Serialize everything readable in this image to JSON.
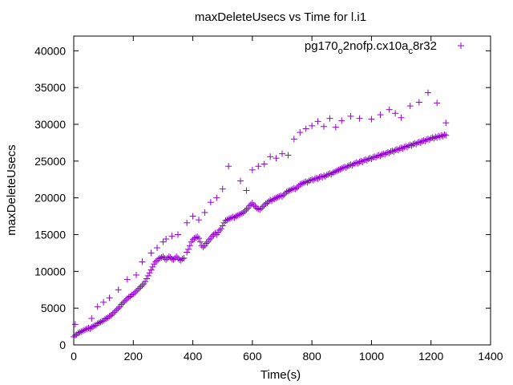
{
  "chart_data": {
    "type": "scatter",
    "title": "maxDeleteUsecs vs Time for l.i1",
    "xlabel": "Time(s)",
    "ylabel": "maxDeleteUsecs",
    "xlim": [
      0,
      1400
    ],
    "ylim": [
      0,
      42000
    ],
    "x_ticks": [
      0,
      200,
      400,
      600,
      800,
      1000,
      1200,
      1400
    ],
    "y_ticks": [
      0,
      5000,
      10000,
      15000,
      20000,
      25000,
      30000,
      35000,
      40000
    ],
    "x_tick_labels": [
      "0",
      "200",
      "400",
      "600",
      "800",
      "1000",
      "1200",
      "1400"
    ],
    "y_tick_labels": [
      "0",
      "5000",
      "10000",
      "15000",
      "20000",
      "25000",
      "30000",
      "35000",
      "40000"
    ],
    "grid": false,
    "legend_position": "top-right",
    "marker": "plus",
    "series": [
      {
        "name_parts": [
          "pg170",
          "o",
          "2nofp.cx10a",
          "c",
          "8r32"
        ],
        "color": "#9400d3",
        "points": [
          [
            0,
            1100
          ],
          [
            5,
            1300
          ],
          [
            10,
            1400
          ],
          [
            15,
            1600
          ],
          [
            20,
            1700
          ],
          [
            25,
            1800
          ],
          [
            30,
            1900
          ],
          [
            35,
            2000
          ],
          [
            40,
            2100
          ],
          [
            45,
            2200
          ],
          [
            50,
            2300
          ],
          [
            55,
            2200
          ],
          [
            60,
            2400
          ],
          [
            65,
            2500
          ],
          [
            70,
            2600
          ],
          [
            75,
            2700
          ],
          [
            80,
            2900
          ],
          [
            85,
            3000
          ],
          [
            90,
            3100
          ],
          [
            95,
            3200
          ],
          [
            100,
            3300
          ],
          [
            105,
            3500
          ],
          [
            110,
            3600
          ],
          [
            115,
            3700
          ],
          [
            120,
            3900
          ],
          [
            125,
            4000
          ],
          [
            130,
            4200
          ],
          [
            135,
            4400
          ],
          [
            140,
            4600
          ],
          [
            145,
            4800
          ],
          [
            150,
            5000
          ],
          [
            155,
            5200
          ],
          [
            160,
            5500
          ],
          [
            165,
            5700
          ],
          [
            170,
            5900
          ],
          [
            175,
            6100
          ],
          [
            180,
            6300
          ],
          [
            185,
            6500
          ],
          [
            190,
            6600
          ],
          [
            195,
            6800
          ],
          [
            200,
            6900
          ],
          [
            205,
            7100
          ],
          [
            210,
            7300
          ],
          [
            215,
            7500
          ],
          [
            220,
            7700
          ],
          [
            225,
            7900
          ],
          [
            230,
            8100
          ],
          [
            235,
            8300
          ],
          [
            240,
            8600
          ],
          [
            245,
            9000
          ],
          [
            250,
            9400
          ],
          [
            255,
            9800
          ],
          [
            260,
            10200
          ],
          [
            265,
            10600
          ],
          [
            270,
            11000
          ],
          [
            275,
            11300
          ],
          [
            280,
            11500
          ],
          [
            285,
            11700
          ],
          [
            290,
            11800
          ],
          [
            295,
            11900
          ],
          [
            300,
            12000
          ],
          [
            305,
            11800
          ],
          [
            310,
            11600
          ],
          [
            315,
            11800
          ],
          [
            320,
            12000
          ],
          [
            325,
            11900
          ],
          [
            330,
            11700
          ],
          [
            335,
            11600
          ],
          [
            340,
            11800
          ],
          [
            345,
            12000
          ],
          [
            350,
            11800
          ],
          [
            355,
            11600
          ],
          [
            360,
            11500
          ],
          [
            365,
            11700
          ],
          [
            370,
            11800
          ],
          [
            380,
            12600
          ],
          [
            385,
            13000
          ],
          [
            390,
            13500
          ],
          [
            395,
            14000
          ],
          [
            400,
            14300
          ],
          [
            405,
            14500
          ],
          [
            410,
            14600
          ],
          [
            415,
            14700
          ],
          [
            420,
            14500
          ],
          [
            425,
            14000
          ],
          [
            430,
            13500
          ],
          [
            435,
            13300
          ],
          [
            440,
            13500
          ],
          [
            445,
            13800
          ],
          [
            450,
            14000
          ],
          [
            455,
            14300
          ],
          [
            460,
            14500
          ],
          [
            465,
            14800
          ],
          [
            470,
            15000
          ],
          [
            475,
            15200
          ],
          [
            480,
            15000
          ],
          [
            485,
            15300
          ],
          [
            490,
            15600
          ],
          [
            495,
            15800
          ],
          [
            500,
            16200
          ],
          [
            505,
            16600
          ],
          [
            510,
            16900
          ],
          [
            515,
            17000
          ],
          [
            520,
            17100
          ],
          [
            525,
            17200
          ],
          [
            530,
            17300
          ],
          [
            535,
            17400
          ],
          [
            540,
            17300
          ],
          [
            545,
            17500
          ],
          [
            550,
            17600
          ],
          [
            555,
            17700
          ],
          [
            560,
            17800
          ],
          [
            565,
            17900
          ],
          [
            570,
            18000
          ],
          [
            575,
            18200
          ],
          [
            580,
            18400
          ],
          [
            585,
            18600
          ],
          [
            590,
            18900
          ],
          [
            595,
            19100
          ],
          [
            600,
            19300
          ],
          [
            605,
            19000
          ],
          [
            610,
            18800
          ],
          [
            615,
            18600
          ],
          [
            620,
            18500
          ],
          [
            625,
            18400
          ],
          [
            630,
            18600
          ],
          [
            635,
            18800
          ],
          [
            640,
            19000
          ],
          [
            645,
            19200
          ],
          [
            650,
            19300
          ],
          [
            655,
            19500
          ],
          [
            660,
            19700
          ],
          [
            665,
            19600
          ],
          [
            670,
            19800
          ],
          [
            675,
            19900
          ],
          [
            680,
            20000
          ],
          [
            685,
            20100
          ],
          [
            690,
            20200
          ],
          [
            695,
            20300
          ],
          [
            700,
            20200
          ],
          [
            705,
            20400
          ],
          [
            710,
            20600
          ],
          [
            715,
            20800
          ],
          [
            720,
            20900
          ],
          [
            725,
            21000
          ],
          [
            730,
            21100
          ],
          [
            735,
            21200
          ],
          [
            740,
            21300
          ],
          [
            745,
            21200
          ],
          [
            750,
            21400
          ],
          [
            755,
            21600
          ],
          [
            760,
            21800
          ],
          [
            765,
            21900
          ],
          [
            770,
            22000
          ],
          [
            775,
            22100
          ],
          [
            780,
            22200
          ],
          [
            785,
            22100
          ],
          [
            790,
            22300
          ],
          [
            795,
            22400
          ],
          [
            800,
            22500
          ],
          [
            805,
            22400
          ],
          [
            810,
            22600
          ],
          [
            815,
            22700
          ],
          [
            820,
            22600
          ],
          [
            825,
            22800
          ],
          [
            830,
            22900
          ],
          [
            835,
            22800
          ],
          [
            840,
            23000
          ],
          [
            845,
            22900
          ],
          [
            850,
            23100
          ],
          [
            855,
            23200
          ],
          [
            860,
            23300
          ],
          [
            865,
            23200
          ],
          [
            870,
            23400
          ],
          [
            875,
            23500
          ],
          [
            880,
            23600
          ],
          [
            885,
            23700
          ],
          [
            890,
            23800
          ],
          [
            895,
            23900
          ],
          [
            900,
            24000
          ],
          [
            905,
            24100
          ],
          [
            910,
            24200
          ],
          [
            915,
            24100
          ],
          [
            920,
            24300
          ],
          [
            925,
            24400
          ],
          [
            930,
            24500
          ],
          [
            935,
            24400
          ],
          [
            940,
            24600
          ],
          [
            945,
            24700
          ],
          [
            950,
            24800
          ],
          [
            955,
            24700
          ],
          [
            960,
            24900
          ],
          [
            965,
            25000
          ],
          [
            970,
            24900
          ],
          [
            975,
            25100
          ],
          [
            980,
            25200
          ],
          [
            985,
            25100
          ],
          [
            990,
            25300
          ],
          [
            995,
            25400
          ],
          [
            1000,
            25300
          ],
          [
            1005,
            25500
          ],
          [
            1010,
            25600
          ],
          [
            1015,
            25500
          ],
          [
            1020,
            25700
          ],
          [
            1025,
            25800
          ],
          [
            1030,
            25700
          ],
          [
            1035,
            25900
          ],
          [
            1040,
            26000
          ],
          [
            1045,
            25900
          ],
          [
            1050,
            26100
          ],
          [
            1055,
            26200
          ],
          [
            1060,
            26100
          ],
          [
            1065,
            26300
          ],
          [
            1070,
            26400
          ],
          [
            1075,
            26300
          ],
          [
            1080,
            26500
          ],
          [
            1085,
            26600
          ],
          [
            1090,
            26500
          ],
          [
            1095,
            26700
          ],
          [
            1100,
            26800
          ],
          [
            1105,
            26700
          ],
          [
            1110,
            26900
          ],
          [
            1115,
            27000
          ],
          [
            1120,
            26900
          ],
          [
            1125,
            27100
          ],
          [
            1130,
            27200
          ],
          [
            1135,
            27100
          ],
          [
            1140,
            27300
          ],
          [
            1145,
            27400
          ],
          [
            1150,
            27300
          ],
          [
            1155,
            27500
          ],
          [
            1160,
            27600
          ],
          [
            1165,
            27500
          ],
          [
            1170,
            27700
          ],
          [
            1175,
            27800
          ],
          [
            1180,
            27700
          ],
          [
            1185,
            27900
          ],
          [
            1190,
            28000
          ],
          [
            1195,
            27900
          ],
          [
            1200,
            28100
          ],
          [
            1205,
            28200
          ],
          [
            1210,
            28100
          ],
          [
            1215,
            28300
          ],
          [
            1220,
            28200
          ],
          [
            1225,
            28400
          ],
          [
            1230,
            28300
          ],
          [
            1235,
            28500
          ],
          [
            1240,
            28400
          ],
          [
            1245,
            28600
          ],
          [
            1250,
            28500
          ],
          [
            5,
            2800
          ],
          [
            60,
            3600
          ],
          [
            80,
            5200
          ],
          [
            100,
            5800
          ],
          [
            120,
            6400
          ],
          [
            150,
            7500
          ],
          [
            180,
            8900
          ],
          [
            210,
            9500
          ],
          [
            230,
            11300
          ],
          [
            260,
            12500
          ],
          [
            280,
            13200
          ],
          [
            300,
            14000
          ],
          [
            310,
            14400
          ],
          [
            330,
            14800
          ],
          [
            350,
            15000
          ],
          [
            380,
            16600
          ],
          [
            400,
            17500
          ],
          [
            420,
            17000
          ],
          [
            440,
            18000
          ],
          [
            460,
            19400
          ],
          [
            480,
            20000
          ],
          [
            500,
            21200
          ],
          [
            520,
            24300
          ],
          [
            560,
            22300
          ],
          [
            580,
            21000
          ],
          [
            600,
            23800
          ],
          [
            620,
            24300
          ],
          [
            640,
            24600
          ],
          [
            660,
            25600
          ],
          [
            680,
            25400
          ],
          [
            700,
            26000
          ],
          [
            720,
            25800
          ],
          [
            740,
            28000
          ],
          [
            760,
            28900
          ],
          [
            780,
            29400
          ],
          [
            800,
            29800
          ],
          [
            820,
            30400
          ],
          [
            840,
            29700
          ],
          [
            860,
            30800
          ],
          [
            880,
            29600
          ],
          [
            900,
            30500
          ],
          [
            930,
            31100
          ],
          [
            960,
            30800
          ],
          [
            1000,
            30700
          ],
          [
            1030,
            31300
          ],
          [
            1060,
            32000
          ],
          [
            1080,
            31500
          ],
          [
            1100,
            30900
          ],
          [
            1130,
            32500
          ],
          [
            1160,
            33000
          ],
          [
            1190,
            34300
          ],
          [
            1220,
            32900
          ],
          [
            1250,
            30200
          ]
        ]
      }
    ]
  }
}
